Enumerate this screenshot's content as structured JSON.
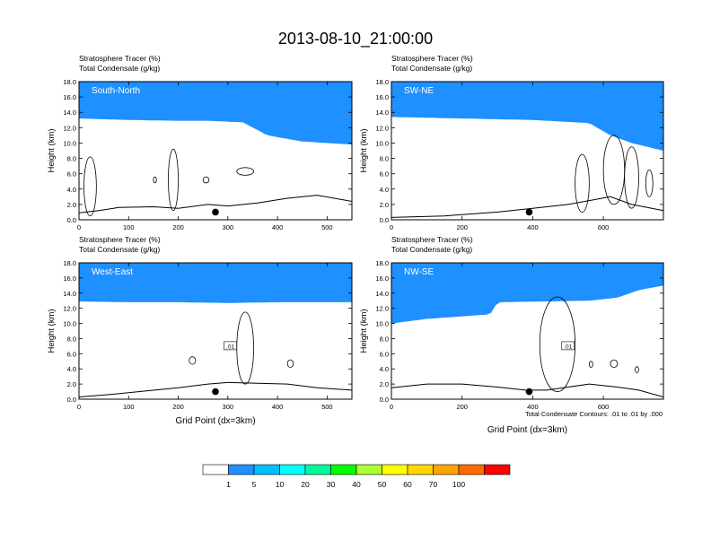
{
  "figure": {
    "title": "2013-08-10_21:00:00",
    "contour_note": "Total Condensate Contours: .01 to .01 by .000",
    "colorbar": {
      "labels": [
        "1",
        "5",
        "10",
        "20",
        "30",
        "40",
        "50",
        "60",
        "70",
        "100"
      ],
      "colors": [
        "#ffffff",
        "#1e90ff",
        "#00bfff",
        "#00ffff",
        "#00fa9a",
        "#00ff00",
        "#adff2f",
        "#ffff00",
        "#ffd700",
        "#ffa500",
        "#ff6a00",
        "#ff0000"
      ]
    }
  },
  "chart_data": [
    {
      "type": "contour-section",
      "panel_label": "South-North",
      "title_line1": "Stratosphere Tracer   (%)",
      "title_line2": "Total Condensate   (g/kg)",
      "ylabel": "Height (km)",
      "xlabel": "",
      "xlim": [
        0,
        550
      ],
      "ylim": [
        0,
        18
      ],
      "xticks": [
        "0",
        "100",
        "200",
        "300",
        "400",
        "500"
      ],
      "xtick_values": [
        0,
        100,
        200,
        300,
        400,
        500
      ],
      "yticks": [
        "0.0",
        "2.0",
        "4.0",
        "6.0",
        "8.0",
        "10.0",
        "12.0",
        "14.0",
        "16.0",
        "18.0"
      ],
      "tropopause_base": [
        [
          0,
          13.2
        ],
        [
          100,
          13.0
        ],
        [
          200,
          12.9
        ],
        [
          260,
          12.9
        ],
        [
          330,
          12.7
        ],
        [
          380,
          11.0
        ],
        [
          450,
          10.2
        ],
        [
          550,
          9.8
        ]
      ],
      "terrain": [
        [
          0,
          0.9
        ],
        [
          40,
          1.2
        ],
        [
          80,
          1.6
        ],
        [
          150,
          1.7
        ],
        [
          200,
          1.5
        ],
        [
          260,
          2.0
        ],
        [
          300,
          1.8
        ],
        [
          360,
          2.2
        ],
        [
          420,
          2.8
        ],
        [
          480,
          3.2
        ],
        [
          550,
          2.4
        ]
      ],
      "cloud_contours": [
        {
          "x": [
            10,
            35
          ],
          "y": [
            0.5,
            8.2
          ]
        },
        {
          "x": [
            180,
            200
          ],
          "y": [
            1.2,
            9.2
          ]
        },
        {
          "x": [
            318,
            352
          ],
          "y": [
            5.8,
            6.8
          ]
        },
        {
          "x": [
            150,
            156
          ],
          "y": [
            4.8,
            5.6
          ]
        },
        {
          "x": [
            250,
            262
          ],
          "y": [
            4.8,
            5.6
          ]
        }
      ],
      "marker": {
        "x": 275,
        "y": 1.0
      }
    },
    {
      "type": "contour-section",
      "panel_label": "SW-NE",
      "title_line1": "Stratosphere Tracer   (%)",
      "title_line2": "Total Condensate   (g/kg)",
      "ylabel": "Height (km)",
      "xlabel": "",
      "xlim": [
        0,
        770
      ],
      "ylim": [
        0,
        18
      ],
      "xticks": [
        "0",
        "200",
        "400",
        "600"
      ],
      "xtick_values": [
        0,
        200,
        400,
        600
      ],
      "yticks": [
        "0.0",
        "2.0",
        "4.0",
        "6.0",
        "8.0",
        "10.0",
        "12.0",
        "14.0",
        "16.0",
        "18.0"
      ],
      "tropopause_base": [
        [
          0,
          13.4
        ],
        [
          200,
          13.2
        ],
        [
          400,
          13.0
        ],
        [
          560,
          12.6
        ],
        [
          620,
          11.0
        ],
        [
          680,
          10.0
        ],
        [
          770,
          9.0
        ]
      ],
      "terrain": [
        [
          0,
          0.3
        ],
        [
          150,
          0.5
        ],
        [
          300,
          1.0
        ],
        [
          400,
          1.5
        ],
        [
          500,
          2.0
        ],
        [
          560,
          2.5
        ],
        [
          620,
          3.0
        ],
        [
          680,
          2.0
        ],
        [
          770,
          1.2
        ]
      ],
      "cloud_contours": [
        {
          "x": [
            520,
            560
          ],
          "y": [
            1.0,
            8.5
          ]
        },
        {
          "x": [
            600,
            660
          ],
          "y": [
            2.0,
            11.0
          ]
        },
        {
          "x": [
            660,
            700
          ],
          "y": [
            1.5,
            9.5
          ]
        },
        {
          "x": [
            720,
            740
          ],
          "y": [
            3.0,
            6.5
          ]
        }
      ],
      "marker": {
        "x": 390,
        "y": 1.0
      }
    },
    {
      "type": "contour-section",
      "panel_label": "West-East",
      "title_line1": "Stratosphere Tracer   (%)",
      "title_line2": "Total Condensate   (g/kg)",
      "ylabel": "Height (km)",
      "xlabel": "Grid Point (dx=3km)",
      "xlim": [
        0,
        550
      ],
      "ylim": [
        0,
        18
      ],
      "xticks": [
        "0",
        "100",
        "200",
        "300",
        "400",
        "500"
      ],
      "xtick_values": [
        0,
        100,
        200,
        300,
        400,
        500
      ],
      "yticks": [
        "0.0",
        "2.0",
        "4.0",
        "6.0",
        "8.0",
        "10.0",
        "12.0",
        "14.0",
        "16.0",
        "18.0"
      ],
      "tropopause_base": [
        [
          0,
          12.9
        ],
        [
          100,
          12.8
        ],
        [
          200,
          12.8
        ],
        [
          300,
          12.7
        ],
        [
          400,
          12.8
        ],
        [
          550,
          12.8
        ]
      ],
      "terrain": [
        [
          0,
          0.3
        ],
        [
          60,
          0.6
        ],
        [
          120,
          1.0
        ],
        [
          200,
          1.5
        ],
        [
          260,
          2.0
        ],
        [
          300,
          2.2
        ],
        [
          360,
          2.1
        ],
        [
          420,
          2.0
        ],
        [
          480,
          1.5
        ],
        [
          550,
          1.2
        ]
      ],
      "cloud_contours": [
        {
          "x": [
            318,
            352
          ],
          "y": [
            2.0,
            11.5
          ]
        },
        {
          "x": [
            222,
            235
          ],
          "y": [
            4.6,
            5.6
          ]
        },
        {
          "x": [
            420,
            432
          ],
          "y": [
            4.2,
            5.2
          ]
        }
      ],
      "contour_label": ".01",
      "contour_label_pos": {
        "x": 305,
        "y": 7.0
      },
      "marker": {
        "x": 275,
        "y": 1.0
      }
    },
    {
      "type": "contour-section",
      "panel_label": "NW-SE",
      "title_line1": "Stratosphere Tracer   (%)",
      "title_line2": "Total Condensate   (g/kg)",
      "ylabel": "Height (km)",
      "xlabel": "Grid Point (dx=3km)",
      "xlim": [
        0,
        770
      ],
      "ylim": [
        0,
        18
      ],
      "xticks": [
        "0",
        "200",
        "400",
        "600"
      ],
      "xtick_values": [
        0,
        200,
        400,
        600
      ],
      "yticks": [
        "0.0",
        "2.0",
        "4.0",
        "6.0",
        "8.0",
        "10.0",
        "12.0",
        "14.0",
        "16.0",
        "18.0"
      ],
      "tropopause_base": [
        [
          0,
          10.0
        ],
        [
          100,
          10.6
        ],
        [
          280,
          11.2
        ],
        [
          300,
          12.8
        ],
        [
          560,
          13.0
        ],
        [
          640,
          13.4
        ],
        [
          700,
          14.4
        ],
        [
          770,
          15.0
        ]
      ],
      "terrain": [
        [
          0,
          1.5
        ],
        [
          100,
          2.0
        ],
        [
          200,
          2.0
        ],
        [
          300,
          1.6
        ],
        [
          380,
          1.2
        ],
        [
          440,
          1.2
        ],
        [
          500,
          1.6
        ],
        [
          560,
          2.0
        ],
        [
          640,
          1.6
        ],
        [
          700,
          1.2
        ],
        [
          770,
          0.3
        ]
      ],
      "cloud_contours": [
        {
          "x": [
            420,
            520
          ],
          "y": [
            1.0,
            13.5
          ]
        },
        {
          "x": [
            560,
            570
          ],
          "y": [
            4.2,
            5.0
          ]
        },
        {
          "x": [
            620,
            640
          ],
          "y": [
            4.2,
            5.2
          ]
        },
        {
          "x": [
            690,
            700
          ],
          "y": [
            3.5,
            4.3
          ]
        }
      ],
      "contour_label": ".01",
      "contour_label_pos": {
        "x": 500,
        "y": 7.0
      },
      "marker": {
        "x": 390,
        "y": 1.0
      }
    }
  ]
}
